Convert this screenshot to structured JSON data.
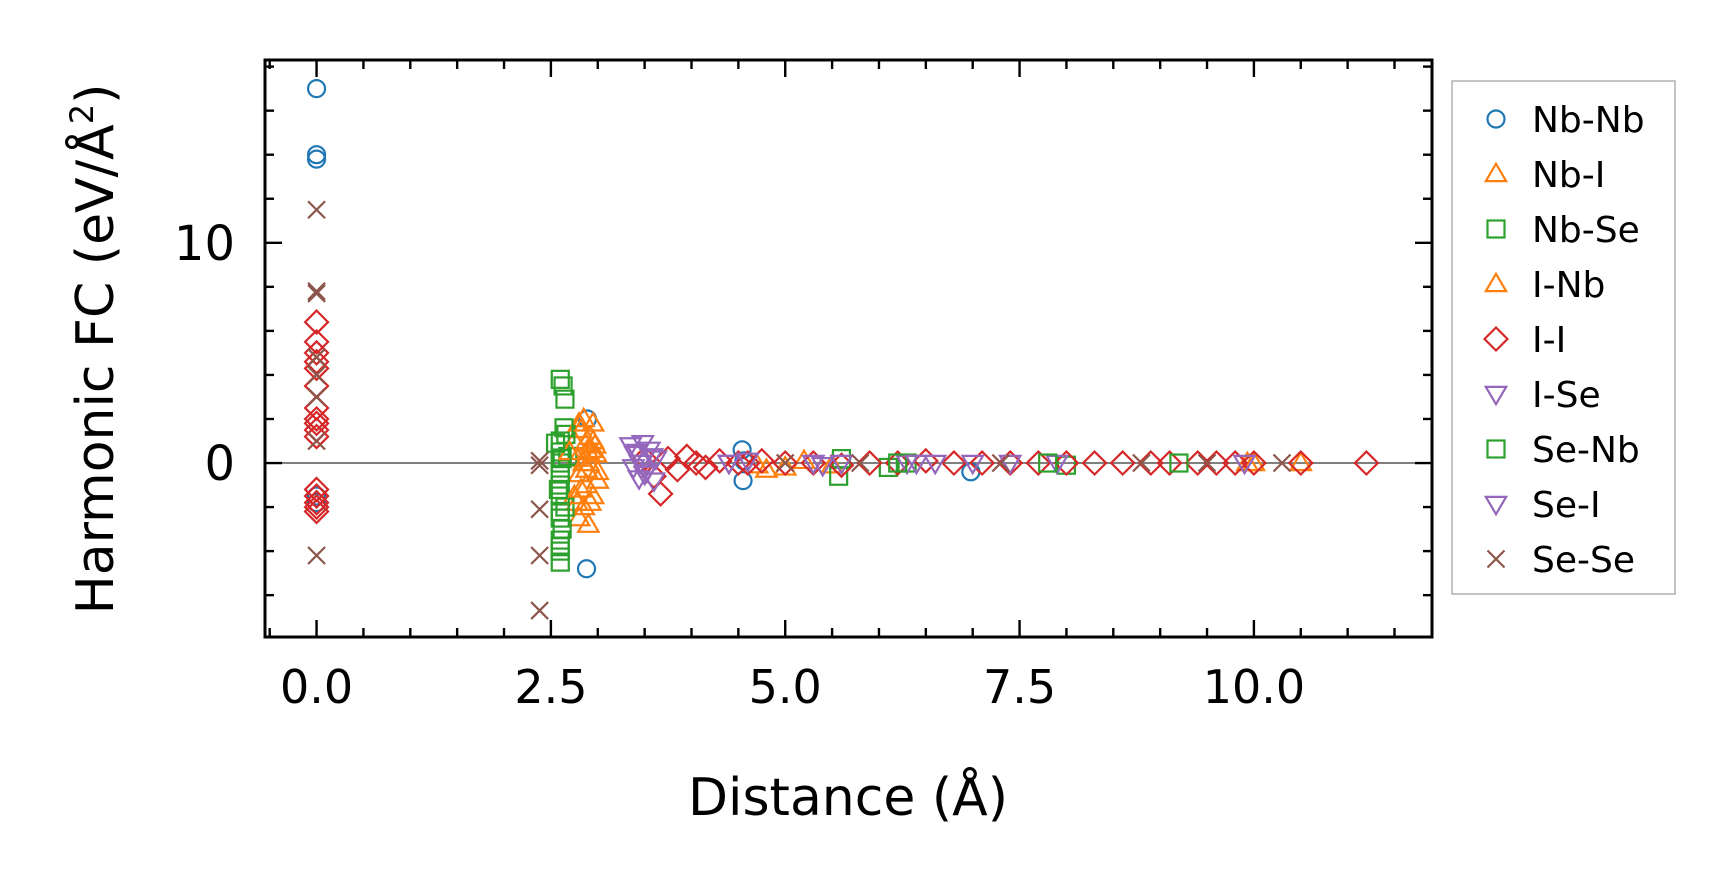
{
  "chart_data": {
    "type": "scatter",
    "title": "",
    "xlabel": "Distance (Å)",
    "ylabel_main": "Harmonic FC (eV/Å",
    "ylabel_sup": "2",
    "ylabel_close": ")",
    "xlim": [
      -0.55,
      11.9
    ],
    "ylim": [
      -7.9,
      18.3
    ],
    "x_ticks": [
      0.0,
      2.5,
      5.0,
      7.5,
      10.0
    ],
    "x_tick_labels": [
      "0.0",
      "2.5",
      "5.0",
      "7.5",
      "10.0"
    ],
    "y_ticks": [
      0,
      10
    ],
    "y_tick_labels": [
      "0",
      "10"
    ],
    "zero_line": true,
    "grid": false,
    "legend_position": "outside-right",
    "series": [
      {
        "name": "Nb-Nb",
        "marker": "circle",
        "color": "#1f77b4",
        "x": [
          0.0,
          0.0,
          0.0,
          0.0,
          0.0,
          2.89,
          2.88,
          4.54,
          4.55,
          4.56,
          6.98
        ],
        "y": [
          17.0,
          14.0,
          13.8,
          -1.5,
          -1.8,
          2.0,
          -4.8,
          0.6,
          -0.8,
          0.1,
          -0.4
        ]
      },
      {
        "name": "Nb-I",
        "marker": "triangle-up",
        "color": "#ff7f0e",
        "x": [
          2.75,
          2.78,
          2.8,
          2.82,
          2.85,
          2.88,
          2.9,
          2.92,
          2.95,
          2.97,
          3.0,
          2.8,
          2.85,
          2.9,
          2.95,
          2.78,
          2.88,
          2.93,
          4.7,
          4.8,
          5.0,
          5.2,
          5.5,
          10.0,
          10.5
        ],
        "y": [
          1.0,
          0.2,
          -0.5,
          1.5,
          2.0,
          -1.0,
          0.5,
          1.2,
          -1.5,
          0.8,
          -0.4,
          -2.5,
          -2.0,
          0.0,
          1.8,
          -1.8,
          -0.3,
          0.6,
          -0.1,
          -0.3,
          -0.2,
          0.1,
          -0.1,
          0.0,
          0.0
        ]
      },
      {
        "name": "Nb-Se",
        "marker": "square",
        "color": "#2ca02c",
        "x": [
          2.6,
          2.6,
          2.6,
          2.6,
          2.6,
          2.6,
          2.6,
          2.6,
          2.6,
          2.6,
          2.6,
          2.63,
          2.65,
          2.66,
          2.68,
          2.65,
          2.62,
          5.57,
          5.6,
          6.1,
          6.3,
          8.0
        ],
        "y": [
          3.8,
          1.0,
          0.5,
          0.0,
          -0.5,
          -1.0,
          -1.5,
          -2.5,
          -3.5,
          -4.0,
          -4.5,
          3.5,
          2.9,
          1.3,
          0.3,
          -2.0,
          -3.0,
          -0.6,
          0.2,
          -0.2,
          0.0,
          -0.1
        ]
      },
      {
        "name": "I-Nb",
        "marker": "triangle-up",
        "color": "#ff7f0e",
        "x": [
          2.7,
          2.75,
          2.8,
          2.85,
          2.9,
          2.95,
          3.0,
          2.82,
          2.87,
          2.92,
          2.98,
          9.93
        ],
        "y": [
          0.5,
          -1.5,
          1.8,
          0.0,
          -2.8,
          1.0,
          -0.8,
          -1.2,
          0.9,
          -1.8,
          0.4,
          0.0
        ]
      },
      {
        "name": "I-I",
        "marker": "diamond",
        "color": "#d62728",
        "x": [
          0.0,
          0.0,
          0.0,
          0.0,
          0.0,
          0.0,
          0.0,
          0.0,
          0.0,
          0.0,
          0.0,
          0.0,
          0.0,
          0.0,
          0.0,
          0.0,
          3.5,
          3.6,
          3.67,
          3.75,
          3.85,
          3.95,
          4.05,
          4.15,
          4.3,
          4.5,
          4.6,
          4.75,
          5.0,
          5.3,
          5.6,
          5.9,
          6.2,
          6.5,
          6.8,
          7.1,
          7.4,
          7.7,
          8.0,
          8.3,
          8.6,
          8.9,
          9.1,
          9.4,
          9.6,
          9.8,
          10.0,
          10.5,
          11.2
        ],
        "y": [
          6.4,
          5.5,
          5.0,
          4.6,
          4.3,
          3.5,
          2.5,
          2.0,
          1.8,
          1.5,
          1.2,
          -1.2,
          -1.5,
          -1.8,
          -2.0,
          -2.2,
          0.2,
          -0.6,
          -1.4,
          0.2,
          -0.3,
          0.3,
          0.0,
          -0.2,
          0.1,
          0.0,
          0.0,
          0.1,
          0.0,
          0.0,
          -0.1,
          0.0,
          0.0,
          0.1,
          0.0,
          0.0,
          0.0,
          0.0,
          0.0,
          0.0,
          0.0,
          0.0,
          0.0,
          0.0,
          0.0,
          0.0,
          0.0,
          0.0,
          0.0
        ]
      },
      {
        "name": "I-Se",
        "marker": "triangle-down",
        "color": "#9467bd",
        "x": [
          3.35,
          3.4,
          3.45,
          3.5,
          3.55,
          3.6,
          3.38,
          3.48,
          3.58,
          4.4,
          4.6,
          5.3,
          5.4,
          5.6,
          6.3,
          6.6,
          7.0,
          7.4,
          7.9
        ],
        "y": [
          0.8,
          0.4,
          0.0,
          -0.5,
          0.6,
          -0.8,
          -0.2,
          0.9,
          0.3,
          0.0,
          0.1,
          0.0,
          -0.1,
          0.0,
          0.0,
          0.0,
          0.0,
          0.0,
          0.0
        ]
      },
      {
        "name": "Se-Nb",
        "marker": "square",
        "color": "#2ca02c",
        "x": [
          2.55,
          2.58,
          2.62,
          2.6,
          2.64,
          2.6,
          6.2,
          7.8,
          9.2
        ],
        "y": [
          0.9,
          -1.2,
          0.2,
          -2.2,
          1.6,
          -3.8,
          0.0,
          0.0,
          0.0
        ]
      },
      {
        "name": "Se-I",
        "marker": "triangle-down",
        "color": "#9467bd",
        "x": [
          3.42,
          3.52,
          3.62,
          3.44,
          4.4,
          6.4,
          9.9
        ],
        "y": [
          0.5,
          -0.4,
          0.2,
          -0.7,
          0.0,
          0.0,
          0.0
        ]
      },
      {
        "name": "Se-Se",
        "marker": "x",
        "color": "#8c564b",
        "x": [
          0.0,
          0.0,
          0.0,
          0.0,
          0.0,
          0.0,
          0.0,
          0.0,
          2.38,
          2.38,
          2.38,
          2.38,
          2.38,
          5.0,
          5.8,
          7.3,
          8.8,
          9.5,
          10.3
        ],
        "y": [
          11.5,
          7.8,
          7.7,
          4.8,
          4.0,
          3.0,
          1.0,
          -4.2,
          0.1,
          -2.1,
          -4.2,
          -6.7,
          -0.1,
          0.0,
          0.0,
          0.0,
          0.0,
          0.0,
          0.0
        ]
      }
    ]
  }
}
